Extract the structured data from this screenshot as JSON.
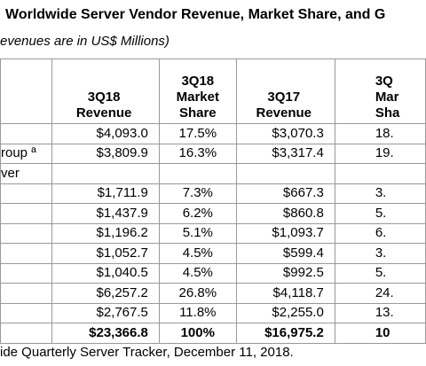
{
  "header": {
    "title": "Worldwide Server Vendor Revenue, Market Share, and G",
    "subtitle": "evenues are in US$ Millions)"
  },
  "table": {
    "columns": [
      null,
      [
        "3Q18",
        "Revenue"
      ],
      [
        "3Q18",
        "Market",
        "Share"
      ],
      [
        "3Q17",
        "Revenue"
      ],
      [
        "3Q",
        "Mar",
        "Sha"
      ]
    ],
    "rows": [
      [
        null,
        "$4,093.0",
        "17.5%",
        "$3,070.3",
        "18."
      ],
      [
        "roup ª",
        "$3,809.9",
        "16.3%",
        "$3,317.4",
        "19."
      ],
      [
        "ver",
        null,
        null,
        null,
        null
      ],
      [
        null,
        "$1,711.9",
        "7.3%",
        "$667.3",
        "3."
      ],
      [
        null,
        "$1,437.9",
        "6.2%",
        "$860.8",
        "5."
      ],
      [
        null,
        "$1,196.2",
        "5.1%",
        "$1,093.7",
        "6."
      ],
      [
        null,
        "$1,052.7",
        "4.5%",
        "$599.4",
        "3."
      ],
      [
        null,
        "$1,040.5",
        "4.5%",
        "$992.5",
        "5."
      ],
      [
        null,
        "$6,257.2",
        "26.8%",
        "$4,118.7",
        "24."
      ],
      [
        null,
        "$2,767.5",
        "11.8%",
        "$2,255.0",
        "13."
      ]
    ],
    "total_row": [
      null,
      "$23,366.8",
      "100%",
      "$16,975.2",
      "10"
    ]
  },
  "footer": "ide Quarterly Server Tracker, December 11, 2018."
}
